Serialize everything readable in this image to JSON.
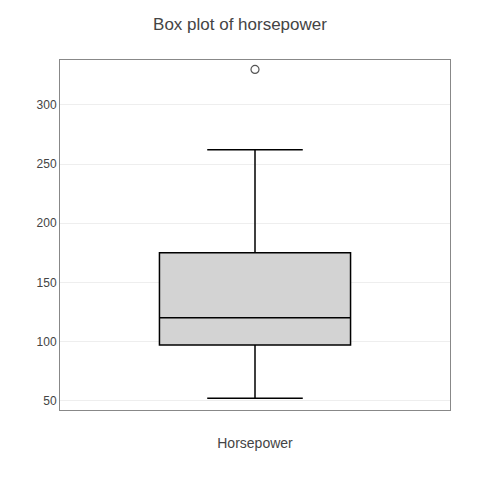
{
  "chart_data": {
    "type": "box",
    "title": "Box plot of horsepower",
    "xlabel": "Horsepower",
    "q1": 97,
    "median": 120,
    "q3": 175,
    "whisker_low": 52,
    "whisker_high": 262,
    "outliers": [
      330
    ],
    "color": "#d3d3d3",
    "ylim": [
      42,
      338
    ],
    "yticks": [
      50,
      100,
      150,
      200,
      250,
      300
    ]
  }
}
